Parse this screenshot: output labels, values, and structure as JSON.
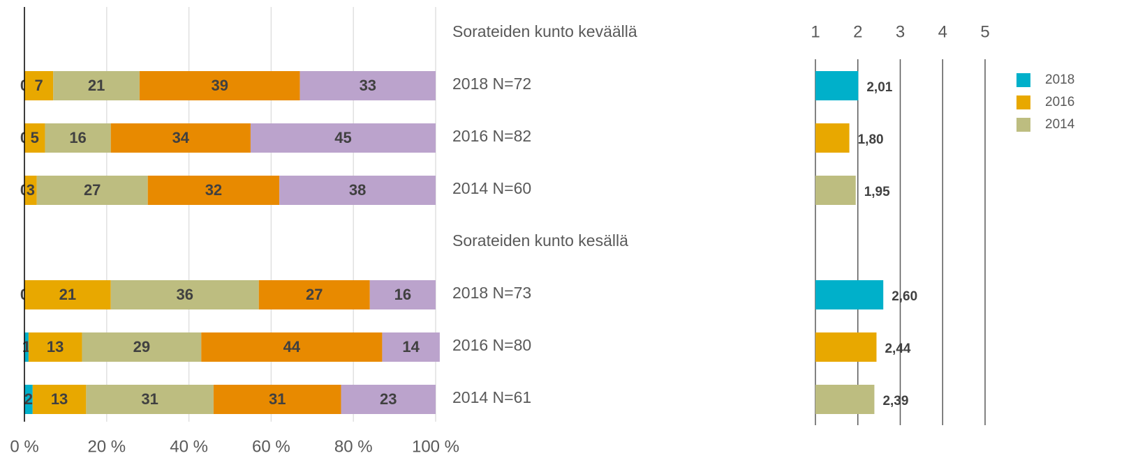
{
  "chart_data": [
    {
      "type": "bar",
      "stacked": true,
      "categories": [
        "Sorateiden kunto keväällä",
        "2018 N=72",
        "2016 N=82",
        "2014 N=60",
        "Sorateiden kunto kesällä",
        "2018 N=73",
        "2016 N=80",
        "2014 N=61"
      ],
      "series": [
        {
          "color": "#00b0ca",
          "values": [
            null,
            0,
            0,
            0,
            null,
            0,
            1,
            2
          ]
        },
        {
          "color": "#e8a800",
          "values": [
            null,
            7,
            5,
            3,
            null,
            21,
            13,
            13
          ]
        },
        {
          "color": "#bdbd80",
          "values": [
            null,
            21,
            16,
            27,
            null,
            36,
            29,
            31
          ]
        },
        {
          "color": "#e88a00",
          "values": [
            null,
            39,
            34,
            32,
            null,
            27,
            44,
            31
          ]
        },
        {
          "color": "#bba3cc",
          "values": [
            null,
            33,
            45,
            38,
            null,
            16,
            14,
            23
          ]
        }
      ],
      "xlim": [
        0,
        100
      ],
      "xticks": [
        {
          "value": 0,
          "label": "0 %"
        },
        {
          "value": 20,
          "label": "20 %"
        },
        {
          "value": 40,
          "label": "40 %"
        },
        {
          "value": 60,
          "label": "60 %"
        },
        {
          "value": 80,
          "label": "80 %"
        },
        {
          "value": 100,
          "label": "100 %"
        }
      ],
      "grid": true
    },
    {
      "type": "bar",
      "stacked": false,
      "series": [
        {
          "name": "2018",
          "color": "#00b0ca",
          "values": [
            2.01,
            2.6
          ],
          "value_labels": [
            "2,01",
            "2,60"
          ]
        },
        {
          "name": "2016",
          "color": "#e8a800",
          "values": [
            1.8,
            2.44
          ],
          "value_labels": [
            "1,80",
            "2,44"
          ]
        },
        {
          "name": "2014",
          "color": "#bdbd80",
          "values": [
            1.95,
            2.39
          ],
          "value_labels": [
            "1,95",
            "2,39"
          ]
        }
      ],
      "xlim": [
        1,
        5
      ],
      "xticks": [
        1,
        2,
        3,
        4,
        5
      ],
      "grid": true,
      "legend": "upper right"
    }
  ]
}
